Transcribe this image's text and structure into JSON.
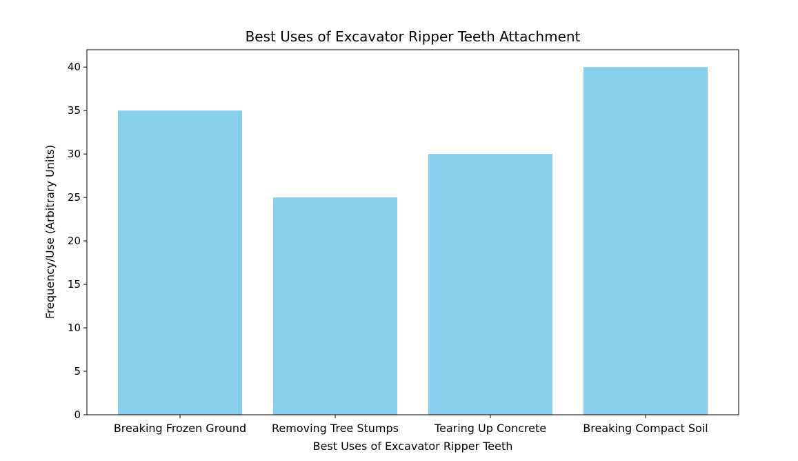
{
  "chart_data": {
    "type": "bar",
    "title": "Best Uses of Excavator Ripper Teeth Attachment",
    "xlabel": "Best Uses of Excavator Ripper Teeth",
    "ylabel": "Frequency/Use (Arbitrary Units)",
    "categories": [
      "Breaking Frozen Ground",
      "Removing Tree Stumps",
      "Tearing Up Concrete",
      "Breaking Compact Soil"
    ],
    "values": [
      35,
      25,
      30,
      40
    ],
    "ylim": [
      0,
      42
    ],
    "yticks": [
      0,
      5,
      10,
      15,
      20,
      25,
      30,
      35,
      40
    ],
    "grid": false,
    "bar_color": "#87CEEB"
  }
}
